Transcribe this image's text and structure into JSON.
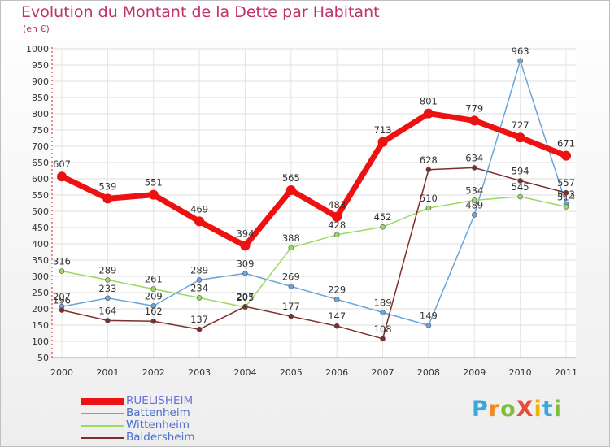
{
  "header": {
    "title": "Evolution du Montant de la Dette par Habitant",
    "subtitle": "(en €)"
  },
  "chart_data": {
    "type": "line",
    "title": "Evolution du Montant de la Dette par Habitant",
    "subtitle": "(en €)",
    "xlabel": "",
    "ylabel": "",
    "x": [
      "2000",
      "2001",
      "2002",
      "2003",
      "2004",
      "2005",
      "2006",
      "2007",
      "2008",
      "2009",
      "2010",
      "2011"
    ],
    "ylim": [
      50,
      1000
    ],
    "y_ticks": [
      50,
      100,
      150,
      200,
      250,
      300,
      350,
      400,
      450,
      500,
      550,
      600,
      650,
      700,
      750,
      800,
      850,
      900,
      950,
      1000
    ],
    "grid": true,
    "legend_placement": "bottom-left",
    "series": [
      {
        "name": "RUELISHEIM",
        "color": "#ee1111",
        "values": [
          607,
          539,
          551,
          469,
          394,
          565,
          483,
          713,
          801,
          779,
          727,
          671
        ]
      },
      {
        "name": "Battenheim",
        "color": "#6aa4d8",
        "values": [
          207,
          233,
          209,
          289,
          309,
          269,
          229,
          189,
          149,
          489,
          963,
          523
        ]
      },
      {
        "name": "Wittenheim",
        "color": "#9ada5e",
        "values": [
          316,
          289,
          261,
          234,
          205,
          388,
          428,
          452,
          510,
          534,
          545,
          514
        ]
      },
      {
        "name": "Baldersheim",
        "color": "#7d2d2d",
        "values": [
          196,
          164,
          162,
          137,
          207,
          177,
          147,
          108,
          628,
          634,
          594,
          557
        ]
      }
    ]
  },
  "legend": {
    "items": [
      {
        "label": "RUELISHEIM",
        "color": "#ee1111",
        "text_color": "#6a6ae0"
      },
      {
        "label": "Battenheim",
        "color": "#6aa4d8",
        "text_color": "#4a6fd0"
      },
      {
        "label": "Wittenheim",
        "color": "#9ada5e",
        "text_color": "#4a6fd0"
      },
      {
        "label": "Baldersheim",
        "color": "#7d2d2d",
        "text_color": "#4a6fd0"
      }
    ]
  },
  "logo": {
    "text": "ProXiti",
    "icon": "proxiti-logo"
  }
}
